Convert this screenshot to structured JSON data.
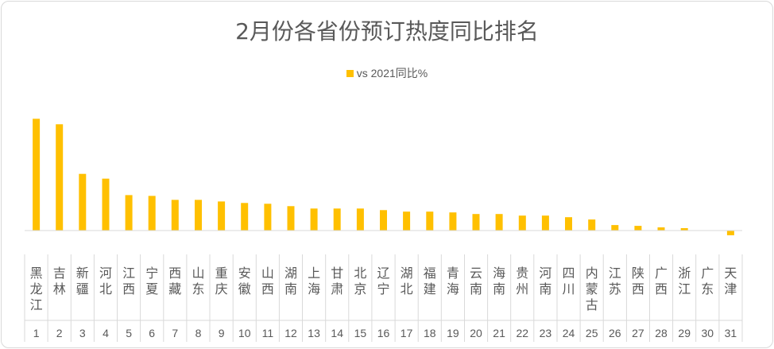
{
  "chart_data": {
    "type": "bar",
    "title": "2月份各省份预订热度同比排名",
    "legend": {
      "position": "top",
      "entries": [
        "vs 2021同比%"
      ]
    },
    "series": [
      {
        "name": "vs 2021同比%",
        "color": "#FFC000",
        "values": [
          142,
          135,
          72,
          66,
          45,
          44,
          39,
          39,
          37,
          35,
          34,
          31,
          28,
          28,
          28,
          26,
          24,
          24,
          23,
          21,
          21,
          19,
          19,
          17,
          14,
          7,
          6,
          4,
          3,
          0,
          -6
        ]
      }
    ],
    "categories": [
      "黑龙江",
      "吉林",
      "新疆",
      "河北",
      "江西",
      "宁夏",
      "西藏",
      "山东",
      "重庆",
      "安徽",
      "山西",
      "湖南",
      "上海",
      "甘肃",
      "北京",
      "辽宁",
      "湖北",
      "福建",
      "青海",
      "云南",
      "海南",
      "贵州",
      "河南",
      "四川",
      "内蒙古",
      "江苏",
      "陕西",
      "广西",
      "浙江",
      "广东",
      "天津"
    ],
    "ranks": [
      "1",
      "2",
      "3",
      "4",
      "5",
      "6",
      "7",
      "8",
      "9",
      "10",
      "11",
      "12",
      "13",
      "14",
      "15",
      "16",
      "17",
      "18",
      "19",
      "20",
      "21",
      "22",
      "23",
      "24",
      "25",
      "26",
      "27",
      "28",
      "29",
      "30",
      "31"
    ],
    "ylim": [
      -10,
      150
    ],
    "grid": false
  }
}
